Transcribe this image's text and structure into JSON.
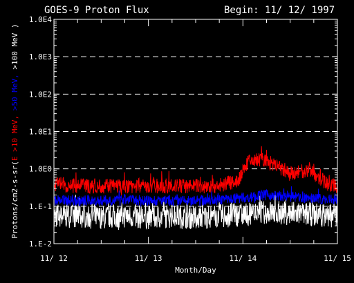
{
  "chart_data": {
    "type": "line",
    "title": "GOES-9 Proton Flux",
    "subtitle": "Begin: 11/ 12/ 1997",
    "xlabel": "Month/Day",
    "ylabel_parts": [
      {
        "text": "Protons/cm2-s-sr(",
        "color": "#ffffff"
      },
      {
        "text": "E >10 MeV, ",
        "color": "#ff0000"
      },
      {
        "text": ">50 MeV, ",
        "color": "#0000ff"
      },
      {
        "text": ">100 MeV )",
        "color": "#ffffff"
      }
    ],
    "y_scale": "log",
    "ylim": [
      0.01,
      10000
    ],
    "yticks": [
      {
        "value": 10000,
        "label": "1.0E4"
      },
      {
        "value": 1000,
        "label": "1.0E3"
      },
      {
        "value": 100,
        "label": "1.0E2"
      },
      {
        "value": 10,
        "label": "1.0E1"
      },
      {
        "value": 1,
        "label": "1.0E0"
      },
      {
        "value": 0.1,
        "label": "1.E-1"
      },
      {
        "value": 0.01,
        "label": "1.E-2"
      }
    ],
    "xlim_days": [
      0,
      3
    ],
    "xticks": [
      {
        "value": 0,
        "label": "11/ 12"
      },
      {
        "value": 1,
        "label": "11/ 13"
      },
      {
        "value": 2,
        "label": "11/ 14"
      },
      {
        "value": 3,
        "label": "11/ 15"
      }
    ],
    "grid": "dashed horizontal at decades",
    "series": [
      {
        "color": "#ffffff",
        "x": [
          0,
          0.25,
          0.5,
          0.75,
          1.0,
          1.25,
          1.5,
          1.75,
          2.0,
          2.25,
          2.5,
          2.75,
          3.0
        ],
        "values": [
          0.055,
          0.055,
          0.05,
          0.055,
          0.05,
          0.055,
          0.05,
          0.055,
          0.06,
          0.07,
          0.065,
          0.06,
          0.055
        ]
      },
      {
        "color": "#0000ff",
        "x": [
          0,
          0.25,
          0.5,
          0.75,
          1.0,
          1.25,
          1.5,
          1.75,
          2.0,
          2.25,
          2.5,
          2.75,
          3.0
        ],
        "values": [
          0.15,
          0.14,
          0.14,
          0.15,
          0.14,
          0.14,
          0.14,
          0.15,
          0.17,
          0.2,
          0.18,
          0.16,
          0.15
        ]
      },
      {
        "color": "#ff0000",
        "x": [
          0,
          0.25,
          0.5,
          0.75,
          1.0,
          1.25,
          1.5,
          1.75,
          1.95,
          2.05,
          2.2,
          2.35,
          2.5,
          2.6,
          2.7,
          2.8,
          2.9,
          3.0
        ],
        "values": [
          0.4,
          0.35,
          0.35,
          0.35,
          0.35,
          0.35,
          0.35,
          0.35,
          0.5,
          1.5,
          1.8,
          1.2,
          0.7,
          0.8,
          1.0,
          0.6,
          0.4,
          0.35
        ]
      }
    ]
  }
}
